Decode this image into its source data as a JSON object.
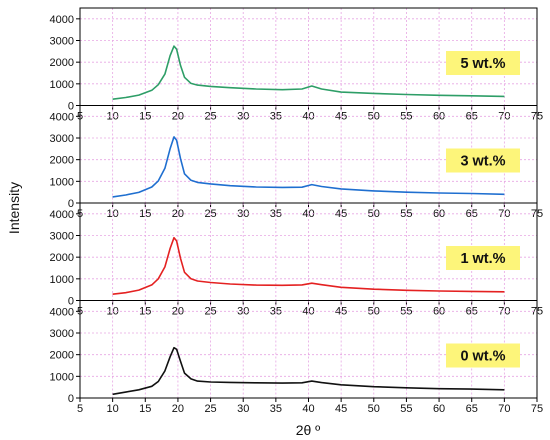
{
  "chart_data": {
    "type": "line",
    "xlabel": "2θ º",
    "ylabel": "Intensity",
    "xlim": [
      5,
      75
    ],
    "ylim": [
      0,
      4500
    ],
    "x_ticks": [
      5,
      10,
      15,
      20,
      25,
      30,
      35,
      40,
      45,
      50,
      55,
      60,
      65,
      70,
      75
    ],
    "y_ticks": [
      0,
      1000,
      2000,
      3000,
      4000
    ],
    "grid": true,
    "x": [
      10,
      12,
      14,
      16,
      17,
      18,
      18.8,
      19.4,
      19.8,
      20.4,
      21,
      22,
      23,
      25,
      28,
      32,
      36,
      39,
      40.5,
      42,
      45,
      50,
      55,
      60,
      65,
      70
    ],
    "series": [
      {
        "name": "5 wt.%",
        "color": "#2e9e67",
        "values": [
          290,
          370,
          480,
          700,
          960,
          1450,
          2300,
          2740,
          2600,
          1850,
          1300,
          1020,
          940,
          880,
          820,
          760,
          730,
          760,
          900,
          760,
          620,
          560,
          510,
          470,
          450,
          420
        ]
      },
      {
        "name": "3 wt.%",
        "color": "#1f6fd0",
        "values": [
          280,
          370,
          490,
          740,
          1020,
          1600,
          2500,
          3050,
          2900,
          2050,
          1350,
          1050,
          950,
          880,
          800,
          740,
          720,
          730,
          850,
          760,
          650,
          560,
          500,
          460,
          440,
          400
        ]
      },
      {
        "name": "1 wt.%",
        "color": "#e42121",
        "values": [
          290,
          360,
          480,
          720,
          1000,
          1550,
          2400,
          2900,
          2750,
          1950,
          1300,
          1000,
          900,
          830,
          760,
          710,
          700,
          720,
          800,
          730,
          610,
          520,
          470,
          440,
          420,
          400
        ]
      },
      {
        "name": "0 wt.%",
        "color": "#111111",
        "values": [
          170,
          270,
          380,
          540,
          760,
          1250,
          1900,
          2320,
          2250,
          1700,
          1150,
          880,
          780,
          740,
          720,
          700,
          690,
          700,
          780,
          710,
          610,
          520,
          470,
          430,
          410,
          380
        ]
      }
    ]
  }
}
